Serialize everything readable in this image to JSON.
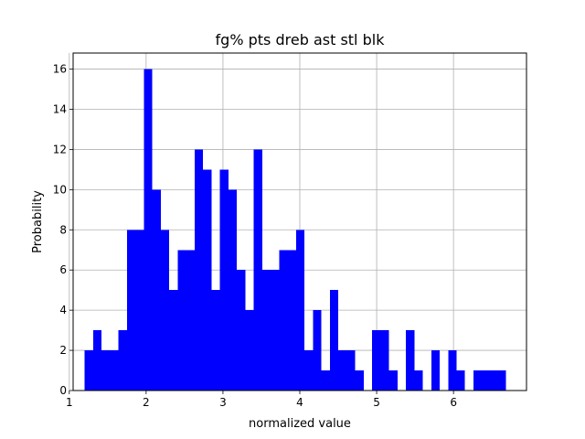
{
  "chart_data": {
    "type": "bar",
    "title": "fg% pts dreb ast stl blk",
    "xlabel": "normalized value",
    "ylabel": "Probability",
    "xlim": [
      1.05,
      6.95
    ],
    "ylim": [
      0,
      16.8
    ],
    "xticks": [
      1,
      2,
      3,
      4,
      5,
      6
    ],
    "yticks": [
      0,
      2,
      4,
      6,
      8,
      10,
      12,
      14,
      16
    ],
    "grid": true,
    "bar_color": "#0000ff",
    "bin_edges": [
      1.2,
      1.31,
      1.42,
      1.53,
      1.64,
      1.75,
      1.86,
      1.97,
      2.08,
      2.19,
      2.3,
      2.41,
      2.52,
      2.63,
      2.74,
      2.85,
      2.96,
      3.07,
      3.18,
      3.29,
      3.4,
      3.51,
      3.62,
      3.73,
      3.84,
      3.95,
      4.06,
      4.17,
      4.28,
      4.39,
      4.5,
      4.61,
      4.72,
      4.83,
      4.94,
      5.05,
      5.16,
      5.27,
      5.38,
      5.49,
      5.6,
      5.71,
      5.82,
      5.93,
      6.04,
      6.15,
      6.26,
      6.37,
      6.48,
      6.59,
      6.68
    ],
    "values": [
      2,
      3,
      2,
      2,
      3,
      8,
      8,
      16,
      10,
      8,
      5,
      7,
      7,
      12,
      11,
      5,
      11,
      10,
      6,
      4,
      12,
      6,
      6,
      7,
      7,
      8,
      2,
      4,
      1,
      5,
      2,
      2,
      1,
      0,
      3,
      3,
      1,
      0,
      3,
      1,
      0,
      2,
      0,
      2,
      1,
      0,
      1,
      1,
      1,
      1
    ]
  }
}
